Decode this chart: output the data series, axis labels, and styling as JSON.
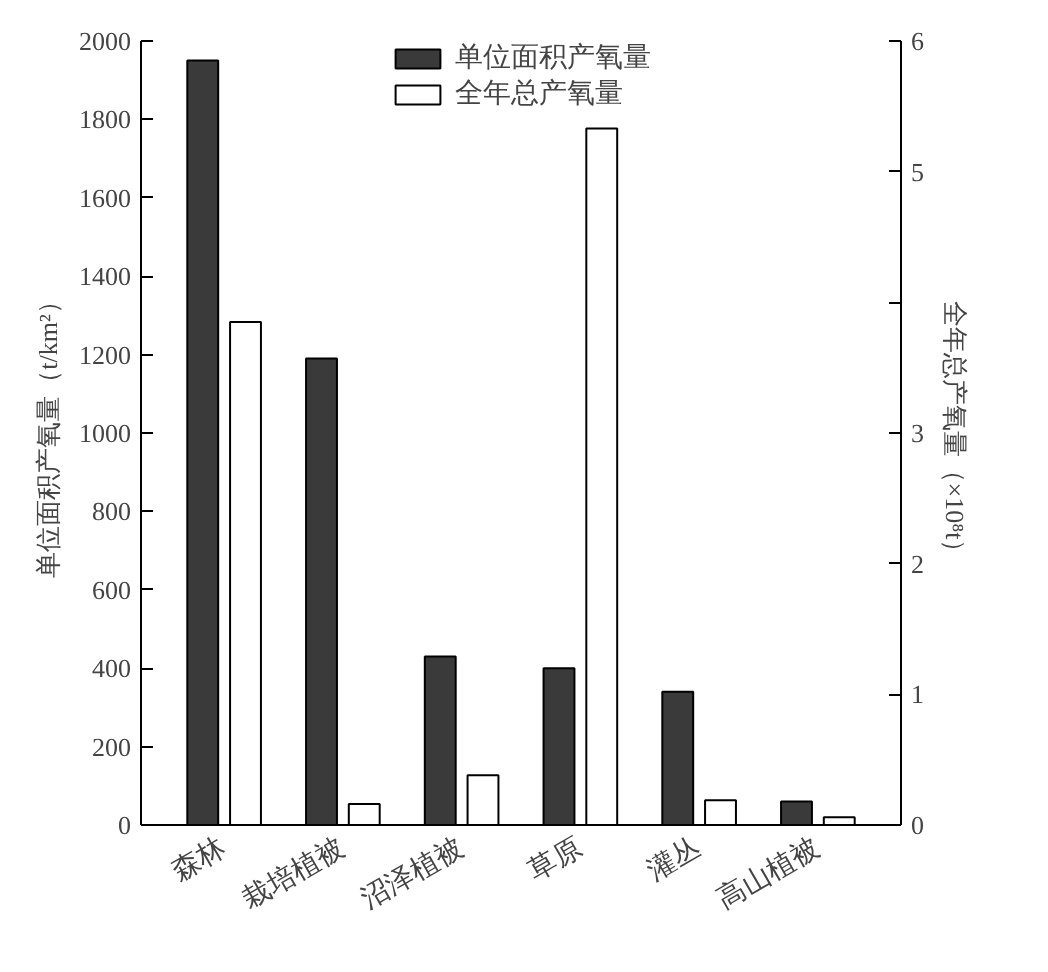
{
  "chart_data": {
    "type": "bar",
    "categories": [
      "森林",
      "栽培植被",
      "沼泽植被",
      "草原",
      "灌丛",
      "高山植被"
    ],
    "ylabel": "单位面积产氧量（t/km²）",
    "y2label": "全年总产氧量（×10⁸t）",
    "ylim": [
      0,
      2000
    ],
    "yticks": [
      0,
      200,
      400,
      600,
      800,
      1000,
      1200,
      1400,
      1600,
      1800,
      2000
    ],
    "y2lim": [
      0,
      6
    ],
    "y2ticks": [
      0,
      1,
      2,
      3,
      {
        "value": 4,
        "label": null
      },
      5,
      6
    ],
    "grid": false,
    "legend": "top",
    "series": [
      {
        "name": "单位面积产氧量",
        "color": "#3a3a3a",
        "values": [
          1950,
          1190,
          430,
          400,
          340,
          60
        ]
      },
      {
        "name": "全年总产氧量",
        "color": "#ffffff",
        "axis": "y2",
        "values": [
          3.85,
          0.16,
          0.38,
          5.33,
          0.19,
          0.06
        ]
      }
    ]
  }
}
